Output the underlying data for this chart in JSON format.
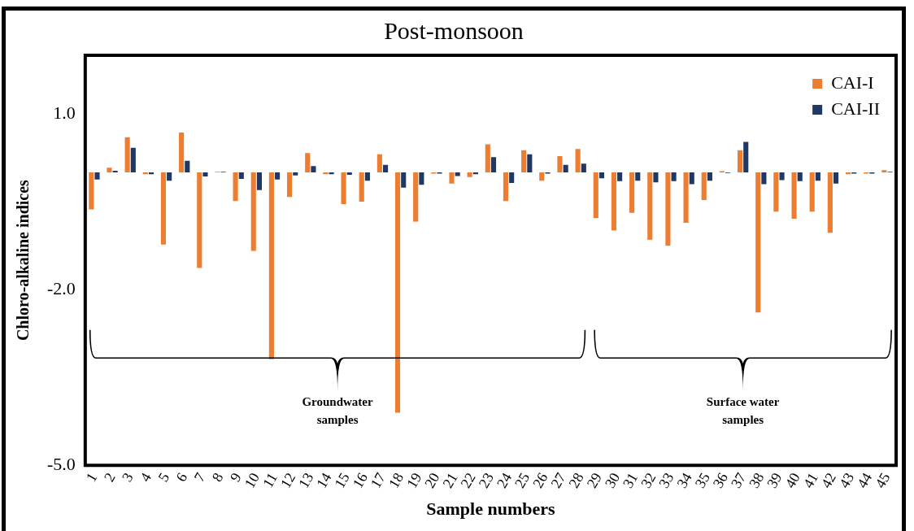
{
  "chart_data": {
    "type": "bar",
    "title": "Post-monsoon",
    "xlabel": "Sample numbers",
    "ylabel": "Chloro-alkaline indices",
    "categories": [
      "1",
      "2",
      "3",
      "4",
      "5",
      "6",
      "7",
      "8",
      "9",
      "10",
      "11",
      "12",
      "13",
      "14",
      "15",
      "16",
      "17",
      "18",
      "19",
      "20",
      "21",
      "22",
      "23",
      "24",
      "25",
      "26",
      "27",
      "28",
      "29",
      "30",
      "31",
      "32",
      "33",
      "34",
      "35",
      "36",
      "37",
      "38",
      "39",
      "40",
      "41",
      "42",
      "43",
      "44",
      "45"
    ],
    "series": [
      {
        "name": "CAI-I",
        "color": "#ed7d31",
        "values": [
          -0.63,
          0.08,
          0.6,
          -0.03,
          -1.23,
          0.68,
          -1.63,
          0.01,
          -0.49,
          -1.34,
          -3.19,
          -0.42,
          0.33,
          -0.03,
          -0.54,
          -0.5,
          0.31,
          -4.1,
          -0.84,
          -0.02,
          -0.19,
          -0.08,
          0.48,
          -0.49,
          0.38,
          -0.14,
          0.28,
          0.4,
          -0.78,
          -0.99,
          -0.69,
          -1.15,
          -1.25,
          -0.86,
          -0.47,
          0.02,
          0.38,
          -2.39,
          -0.67,
          -0.79,
          -0.67,
          -1.03,
          -0.03,
          -0.02,
          0.04
        ]
      },
      {
        "name": "CAI-II",
        "color": "#203864",
        "values": [
          -0.12,
          0.03,
          0.42,
          -0.03,
          -0.14,
          0.2,
          -0.07,
          0.01,
          -0.11,
          -0.3,
          -0.12,
          -0.05,
          0.11,
          -0.03,
          -0.04,
          -0.14,
          0.13,
          -0.26,
          -0.21,
          -0.02,
          -0.06,
          -0.03,
          0.26,
          -0.18,
          0.31,
          -0.02,
          0.13,
          0.15,
          -0.1,
          -0.15,
          -0.14,
          -0.17,
          -0.15,
          -0.2,
          -0.14,
          -0.01,
          0.52,
          -0.2,
          -0.13,
          -0.15,
          -0.14,
          -0.19,
          -0.02,
          -0.02,
          0.01
        ]
      }
    ],
    "ylim": [
      -5,
      2
    ],
    "yticks": [
      {
        "value": -5,
        "label": "-5.0"
      },
      {
        "value": -2,
        "label": "-2.0"
      },
      {
        "value": 1,
        "label": "1.0"
      }
    ],
    "grid": false,
    "legend": "top right",
    "annotations": [
      "Groundwater samples",
      "Surface water samples"
    ]
  }
}
